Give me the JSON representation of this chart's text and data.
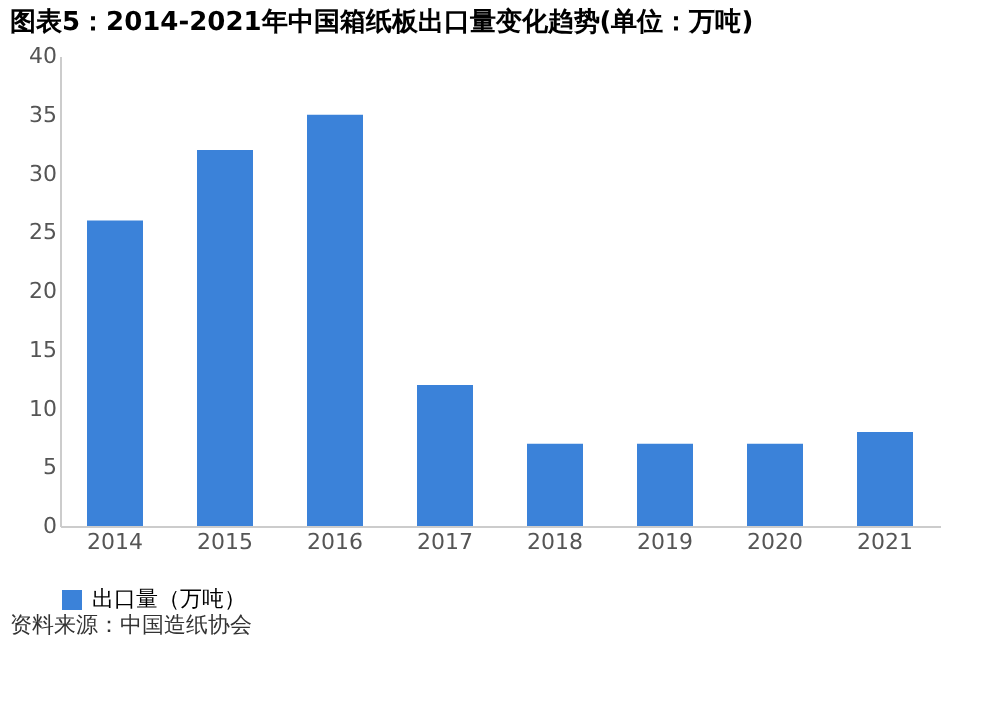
{
  "chart_data": {
    "type": "bar",
    "title": "图表5：2014-2021年中国箱纸板出口量变化趋势(单位：万吨)",
    "categories": [
      "2014",
      "2015",
      "2016",
      "2017",
      "2018",
      "2019",
      "2020",
      "2021"
    ],
    "series": [
      {
        "name": "出口量（万吨）",
        "color": "#3b82d9",
        "values": [
          26,
          32,
          35,
          12,
          7,
          7,
          7,
          8
        ]
      }
    ],
    "ylim": [
      0,
      40
    ],
    "yticks": [
      0,
      5,
      10,
      15,
      20,
      25,
      30,
      35,
      40
    ],
    "grid": false,
    "legend": "bottom",
    "annotations": [
      "资料来源：中国造纸协会"
    ]
  }
}
